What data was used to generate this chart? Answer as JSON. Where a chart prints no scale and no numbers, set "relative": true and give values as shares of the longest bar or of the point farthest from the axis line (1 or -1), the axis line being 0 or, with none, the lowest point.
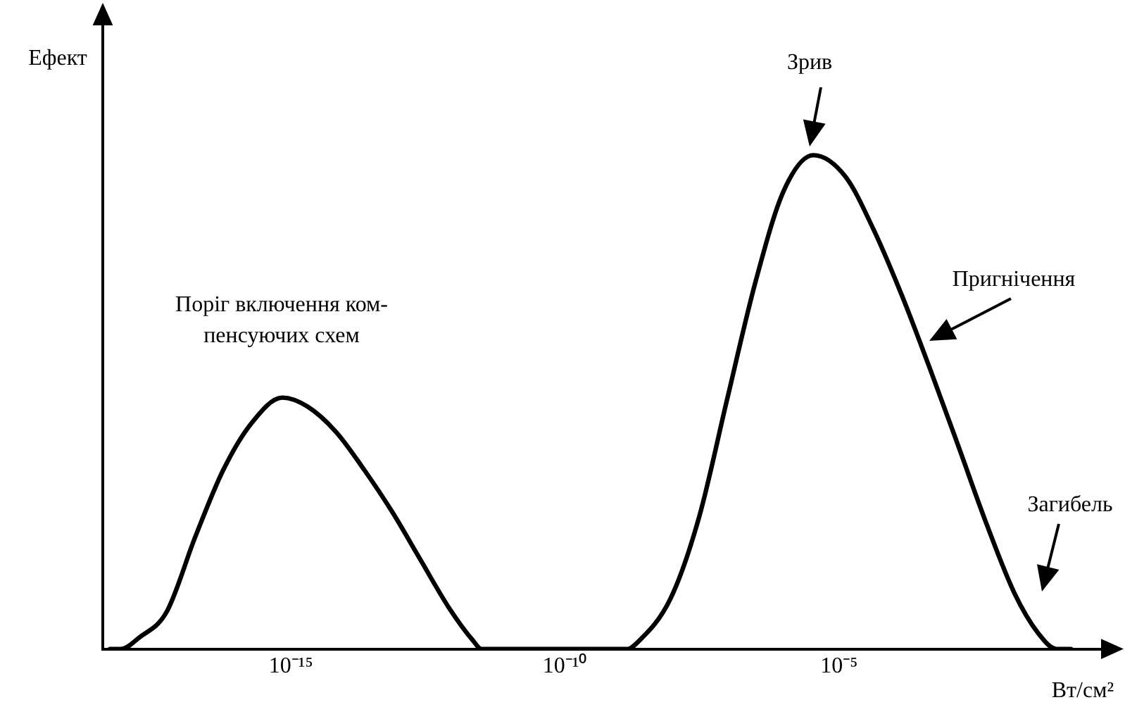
{
  "chart_data": {
    "type": "line",
    "relative": true,
    "log": "x",
    "xlabel": "Вт/см²",
    "xlim": [
      3.7e-19,
      1.3
    ],
    "xticks": [
      {
        "value": 1e-15,
        "label": "10⁻¹⁵"
      },
      {
        "value": 1e-10,
        "label": "10⁻¹⁰"
      },
      {
        "value": 1e-05,
        "label": "10⁻⁵"
      }
    ],
    "grid": false,
    "legend": false,
    "marker": "none",
    "line_style": "solid",
    "series": [
      {
        "color": "#000000",
        "x": [
          5e-19,
          8e-19,
          1.7e-18,
          5.4e-18,
          1.8e-17,
          5.8e-17,
          1.9e-16,
          7e-16,
          2e-15,
          6.6e-15,
          2.2e-14,
          7.2e-14,
          2.3e-13,
          7.7e-13,
          2.1e-12,
          3e-12,
          1.4e-09,
          2e-09,
          8.5e-09,
          2.8e-08,
          9.1e-08,
          3e-07,
          9.8e-07,
          3.4e-06,
          1.3e-05,
          4.2e-05,
          0.00014,
          0.00044,
          0.0015,
          0.0048,
          0.016,
          0.043,
          0.093,
          0.17
        ],
        "values": [
          0,
          0,
          0.023,
          0.075,
          0.227,
          0.362,
          0.457,
          0.509,
          0.491,
          0.44,
          0.362,
          0.276,
          0.181,
          0.083,
          0.017,
          0,
          0,
          0.011,
          0.103,
          0.267,
          0.506,
          0.744,
          0.928,
          1,
          0.957,
          0.851,
          0.716,
          0.572,
          0.411,
          0.256,
          0.112,
          0.032,
          0,
          0
        ]
      }
    ],
    "annotations": [
      "Ефект",
      "Поріг включення ком-\nпенсуючих схем",
      "Зрив",
      "Пригнічення",
      "Загибель"
    ]
  }
}
